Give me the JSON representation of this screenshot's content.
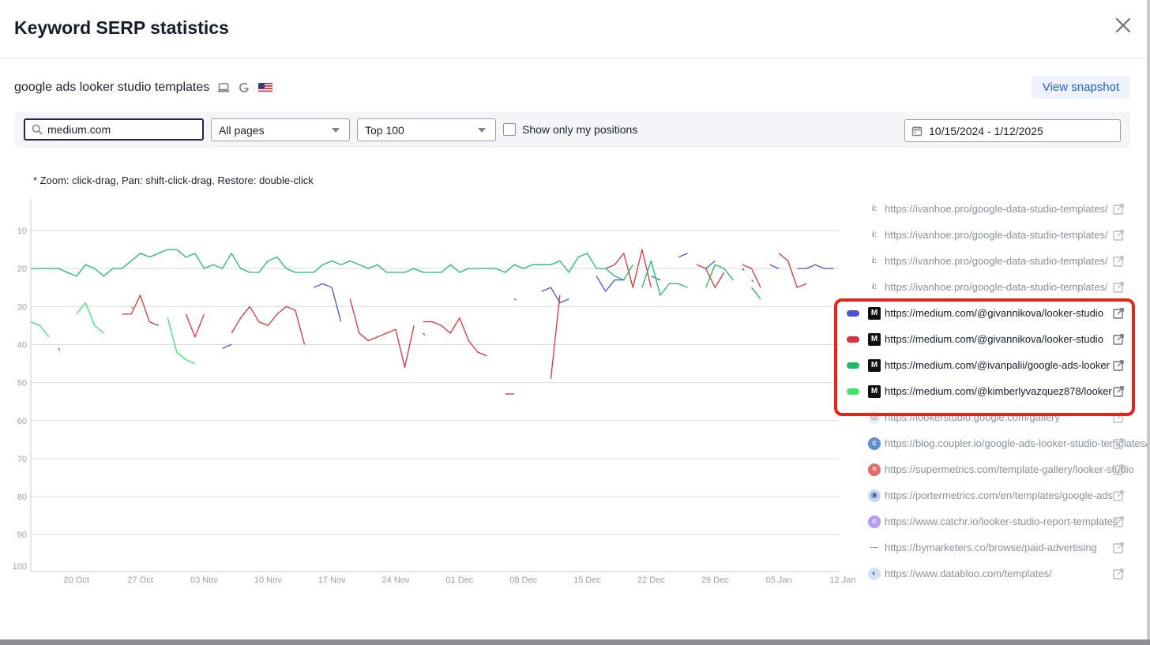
{
  "modal": {
    "title": "Keyword SERP statistics"
  },
  "keyword": {
    "text": "google ads looker studio templates",
    "icons": [
      "laptop-icon",
      "google-icon",
      "us-flag-icon"
    ]
  },
  "snapshot_button": "View snapshot",
  "filters": {
    "search_value": "medium.com",
    "pages_select": "All pages",
    "top_select": "Top 100",
    "show_only_my_positions": "Show only my positions",
    "date_range": "10/15/2024 - 1/12/2025"
  },
  "hint": "* Zoom: click-drag, Pan: shift-click-drag, Restore: double-click",
  "colors": {
    "blue": "#4a52d6",
    "red": "#d9323b",
    "green": "#1dbb6a",
    "lime": "#3ee46a",
    "accent": "#1f5fd0",
    "highlight": "#e0261b"
  },
  "legend": [
    {
      "url": "https://ivanhoe.pro/google-data-studio-templates/",
      "icon": "ivanhoe-icon",
      "state": "muted"
    },
    {
      "url": "https://ivanhoe.pro/google-data-studio-templates/",
      "icon": "ivanhoe-icon",
      "state": "muted"
    },
    {
      "url": "https://ivanhoe.pro/google-data-studio-templates/",
      "icon": "ivanhoe-icon",
      "state": "muted"
    },
    {
      "url": "https://ivanhoe.pro/google-data-studio-templates/",
      "icon": "ivanhoe-icon",
      "state": "muted"
    },
    {
      "url": "https://medium.com/@givannikova/looker-studio",
      "icon": "medium-icon",
      "state": "active",
      "color": "#4a52d6"
    },
    {
      "url": "https://medium.com/@givannikova/looker-studio",
      "icon": "medium-icon",
      "state": "active",
      "color": "#d9323b"
    },
    {
      "url": "https://medium.com/@ivanpalii/google-ads-looker",
      "icon": "medium-icon",
      "state": "active",
      "color": "#1dbb6a"
    },
    {
      "url": "https://medium.com/@kimberlyvazquez878/looker",
      "icon": "medium-icon",
      "state": "active",
      "color": "#3ee46a"
    },
    {
      "url": "https://lookerstudio.google.com/gallery",
      "icon": "looker-icon",
      "state": "muted"
    },
    {
      "url": "https://blog.coupler.io/google-ads-looker-studio-templates/",
      "icon": "coupler-icon",
      "state": "muted"
    },
    {
      "url": "https://supermetrics.com/template-gallery/looker-studio",
      "icon": "supermetrics-icon",
      "state": "muted"
    },
    {
      "url": "https://portermetrics.com/en/templates/google-ads",
      "icon": "portermetrics-icon",
      "state": "muted"
    },
    {
      "url": "https://www.catchr.io/looker-studio-report-templates",
      "icon": "catchr-icon",
      "state": "muted"
    },
    {
      "url": "https://bymarketers.co/browse/paid-advertising",
      "icon": "bymarketers-icon",
      "state": "muted"
    },
    {
      "url": "https://www.databloo.com/templates/",
      "icon": "databloo-icon",
      "state": "muted"
    }
  ],
  "chart_data": {
    "type": "line",
    "y_reversed": true,
    "ylim": [
      1,
      100
    ],
    "y_ticks": [
      10,
      20,
      30,
      40,
      50,
      60,
      70,
      80,
      90,
      100
    ],
    "x_ticks": [
      "20 Oct",
      "27 Oct",
      "03 Nov",
      "10 Nov",
      "17 Nov",
      "24 Nov",
      "01 Dec",
      "08 Dec",
      "15 Dec",
      "22 Dec",
      "29 Dec",
      "05 Jan",
      "12 Jan"
    ],
    "x_start": "2024-10-15",
    "x_end": "2025-01-12",
    "grid": true,
    "series": [
      {
        "name": "https://medium.com/@givannikova/looker-studio",
        "color": "#4a52d6",
        "segments": [
          [
            [
              21,
              41
            ],
            [
              22,
              40
            ]
          ],
          [
            [
              31,
              25
            ],
            [
              32,
              24
            ],
            [
              33,
              25
            ],
            [
              34,
              34
            ]
          ],
          [
            [
              43,
              37
            ],
            [
              43.2,
              37.5
            ]
          ],
          [
            [
              53,
              28
            ],
            [
              53.2,
              28.3
            ]
          ],
          [
            [
              56,
              26
            ],
            [
              57,
              25
            ],
            [
              58,
              29
            ],
            [
              59,
              28
            ]
          ],
          [
            [
              62,
              22
            ],
            [
              63,
              26
            ],
            [
              64,
              23
            ],
            [
              65,
              23
            ]
          ],
          [
            [
              68,
              22
            ],
            [
              69,
              23
            ]
          ],
          [
            [
              71,
              17
            ],
            [
              72,
              16
            ]
          ],
          [
            [
              74,
              20
            ],
            [
              75,
              18
            ]
          ],
          [
            [
              78,
              20
            ],
            [
              78.2,
              20.5
            ]
          ],
          [
            [
              79,
              23
            ],
            [
              79.2,
              23.4
            ]
          ],
          [
            [
              81,
              19
            ],
            [
              82,
              20
            ]
          ],
          [
            [
              84,
              20
            ],
            [
              85,
              20
            ],
            [
              86,
              19
            ],
            [
              87,
              20
            ],
            [
              88,
              20
            ]
          ]
        ]
      },
      {
        "name": "https://medium.com/@givannikova/looker-studio",
        "color": "#d9323b",
        "segments": [
          [
            [
              3,
              41
            ],
            [
              3.2,
              41.5
            ]
          ],
          [
            [
              10,
              32
            ],
            [
              11,
              32
            ],
            [
              12,
              27
            ],
            [
              13,
              34
            ],
            [
              14,
              35
            ]
          ],
          [
            [
              17,
              32
            ],
            [
              18,
              38
            ],
            [
              19,
              32
            ]
          ],
          [
            [
              22,
              37
            ],
            [
              23,
              33
            ],
            [
              24,
              30
            ],
            [
              25,
              34
            ],
            [
              26,
              35
            ],
            [
              27,
              32
            ],
            [
              28,
              30
            ],
            [
              29,
              31
            ],
            [
              30,
              40
            ]
          ],
          [
            [
              35,
              28
            ],
            [
              36,
              37
            ],
            [
              37,
              39
            ],
            [
              38,
              38
            ],
            [
              39,
              37
            ],
            [
              40,
              36
            ],
            [
              41,
              46
            ],
            [
              42,
              35
            ]
          ],
          [
            [
              43,
              34
            ],
            [
              44,
              34
            ],
            [
              45,
              35
            ],
            [
              46,
              37
            ],
            [
              47,
              33
            ],
            [
              48,
              39
            ],
            [
              49,
              42
            ],
            [
              50,
              43
            ]
          ],
          [
            [
              52,
              53
            ],
            [
              53,
              53
            ]
          ],
          [
            [
              57,
              49
            ],
            [
              58,
              27
            ]
          ],
          [
            [
              63,
              20
            ],
            [
              64,
              19
            ],
            [
              65,
              16
            ],
            [
              66,
              25
            ],
            [
              67,
              15
            ],
            [
              68,
              25
            ]
          ],
          [
            [
              73,
              19
            ],
            [
              74,
              20
            ],
            [
              75,
              25
            ],
            [
              76,
              21
            ]
          ],
          [
            [
              78,
              19
            ],
            [
              79,
              20
            ],
            [
              80,
              25
            ]
          ],
          [
            [
              82,
              16
            ],
            [
              83,
              18
            ],
            [
              84,
              25
            ],
            [
              85,
              24
            ]
          ]
        ]
      },
      {
        "name": "https://medium.com/@ivanpalii/google-ads-looker",
        "color": "#1dbb6a",
        "segments": [
          [
            [
              0,
              20
            ],
            [
              1,
              20
            ],
            [
              2,
              20
            ],
            [
              3,
              20
            ],
            [
              4,
              21
            ],
            [
              5,
              22
            ],
            [
              6,
              19
            ],
            [
              7,
              20
            ],
            [
              8,
              22
            ],
            [
              9,
              20
            ],
            [
              10,
              20
            ],
            [
              11,
              18
            ],
            [
              12,
              16
            ],
            [
              13,
              17
            ],
            [
              14,
              16
            ],
            [
              15,
              15
            ],
            [
              16,
              15
            ],
            [
              17,
              17
            ],
            [
              18,
              16
            ],
            [
              19,
              20
            ],
            [
              20,
              19
            ],
            [
              21,
              20
            ],
            [
              22,
              16
            ],
            [
              23,
              20
            ],
            [
              24,
              21
            ],
            [
              25,
              21
            ],
            [
              26,
              18
            ],
            [
              27,
              17
            ],
            [
              28,
              20
            ],
            [
              29,
              21
            ],
            [
              30,
              21
            ],
            [
              31,
              21
            ],
            [
              32,
              19
            ],
            [
              33,
              18
            ],
            [
              34,
              19
            ],
            [
              35,
              18
            ],
            [
              36,
              19
            ],
            [
              37,
              20
            ],
            [
              38,
              19
            ],
            [
              39,
              21
            ],
            [
              40,
              21
            ],
            [
              41,
              21
            ],
            [
              42,
              20
            ],
            [
              43,
              21
            ],
            [
              44,
              21
            ],
            [
              45,
              21
            ],
            [
              46,
              19
            ],
            [
              47,
              21
            ],
            [
              48,
              20
            ],
            [
              49,
              20
            ],
            [
              50,
              20
            ],
            [
              51,
              20
            ],
            [
              52,
              21
            ],
            [
              53,
              19
            ],
            [
              54,
              20
            ],
            [
              55,
              19
            ],
            [
              56,
              19
            ],
            [
              57,
              19
            ],
            [
              58,
              18
            ],
            [
              59,
              21
            ],
            [
              60,
              17
            ],
            [
              61,
              16
            ],
            [
              62,
              20
            ],
            [
              63,
              20
            ],
            [
              64,
              22
            ],
            [
              65,
              23
            ],
            [
              66,
              19
            ]
          ],
          [
            [
              67,
              25
            ],
            [
              68,
              18
            ],
            [
              69,
              27
            ],
            [
              70,
              24
            ],
            [
              71,
              24
            ],
            [
              72,
              25
            ]
          ],
          [
            [
              74,
              25
            ],
            [
              75,
              19
            ],
            [
              76,
              20
            ],
            [
              77,
              23
            ]
          ],
          [
            [
              79,
              25
            ],
            [
              80,
              28
            ]
          ]
        ]
      },
      {
        "name": "https://medium.com/@kimberlyvazquez878/looker",
        "color": "#3ee46a",
        "segments": [
          [
            [
              0,
              34
            ],
            [
              1,
              35
            ],
            [
              2,
              38
            ]
          ],
          [
            [
              5,
              32
            ],
            [
              6,
              29
            ],
            [
              7,
              35
            ],
            [
              8,
              37
            ]
          ],
          [
            [
              11,
              30
            ],
            [
              11.2,
              30.5
            ]
          ],
          [
            [
              15,
              33
            ],
            [
              16,
              42
            ],
            [
              17,
              44
            ],
            [
              18,
              45
            ]
          ]
        ]
      }
    ]
  }
}
